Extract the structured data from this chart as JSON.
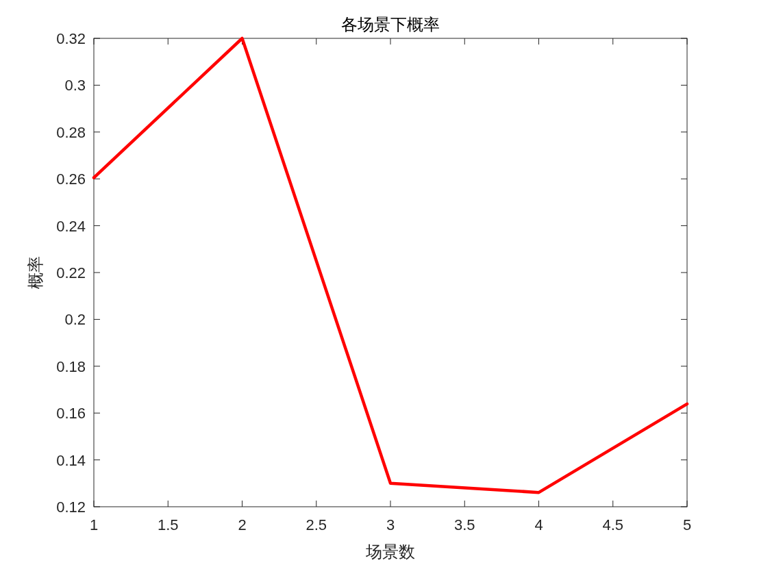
{
  "chart_data": {
    "type": "line",
    "title": "各场景下概率",
    "xlabel": "场景数",
    "ylabel": "概率",
    "x": [
      1,
      2,
      3,
      4,
      5
    ],
    "series": [
      {
        "color": "#ff0000",
        "values": [
          0.2605,
          0.32,
          0.13,
          0.1261,
          0.1639
        ]
      }
    ],
    "xlim": [
      1,
      5
    ],
    "ylim": [
      0.12,
      0.32
    ],
    "xticks": [
      1,
      1.5,
      2,
      2.5,
      3,
      3.5,
      4,
      4.5,
      5
    ],
    "yticks": [
      0.12,
      0.14,
      0.16,
      0.18,
      0.2,
      0.22,
      0.24,
      0.26,
      0.28,
      0.3,
      0.32
    ]
  }
}
